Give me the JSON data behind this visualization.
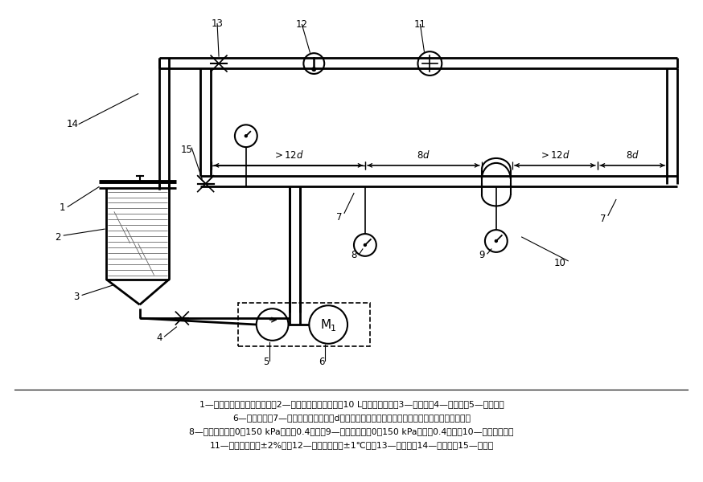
{
  "bg_color": "#ffffff",
  "lc": "#000000",
  "legend_lines": [
    "1—试验油筱盖，上有通气孔；2—试验油筱（容量不小于10 L，带翻边盖）；3—吸油管；4—旁通阀；5—叶片泵；",
    "6—变速电机；7—滤清器连接管（内径d与滤清器相应的进出口孔径相同，直管长度如图所示）；",
    "8—压力表（量程0～150 kPa，精度0.4级）；9—差压计（量程0～150 kPa，精度0.4级）；10—被试滤清器；",
    "11—流量计（精度±2%）；12—温度计（精度±1℃）；13—调节鄀；14—回油管；15—旁通管"
  ],
  "pipe_lw": 2.0,
  "thin_lw": 1.2
}
